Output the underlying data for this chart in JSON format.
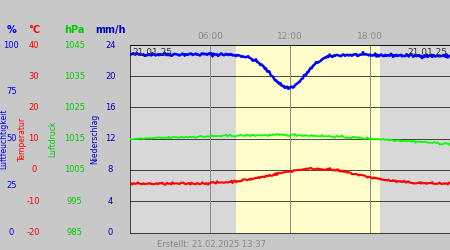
{
  "created_text": "Erstellt: 21.02.2025 13:37",
  "time_labels": [
    "06:00",
    "12:00",
    "18:00"
  ],
  "x_start_label": "21.01.25",
  "x_end_label": "21.01.25",
  "col_headers": [
    "%",
    "°C",
    "hPa",
    "mm/h"
  ],
  "col_colors": [
    "#0000ff",
    "#ff0000",
    "#00cc00",
    "#0000cc"
  ],
  "col_ticks": [
    [
      "100",
      "75",
      "50",
      "25",
      "0"
    ],
    [
      "40",
      "30",
      "20",
      "10",
      "0",
      "-10",
      "-20"
    ],
    [
      "1045",
      "1035",
      "1025",
      "1015",
      "1005",
      "995",
      "985"
    ],
    [
      "24",
      "20",
      "16",
      "12",
      "8",
      "4",
      "0"
    ]
  ],
  "v_label_text": [
    "Luftfeuchtigkeit",
    "Temperatur",
    "Luftdruck",
    "Niederschlag"
  ],
  "v_label_color": [
    "#0000ff",
    "#ff0000",
    "#00cc00",
    "#0000cc"
  ],
  "yellow_region": [
    0.33,
    0.78
  ],
  "grid_color": "#888888",
  "plot_area_bg": "#d8d8d8",
  "yellow_bg": "#ffffcc",
  "fig_bg": "#c8c8c8",
  "num_points": 288
}
